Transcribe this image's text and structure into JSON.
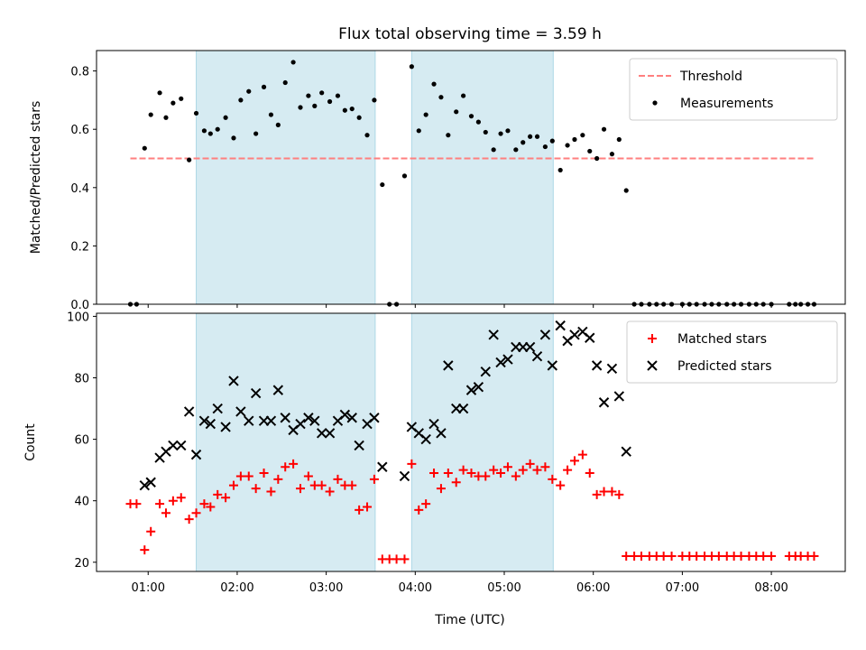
{
  "figure": {
    "title": "Flux total observing time = 3.59 h",
    "xlabel": "Time (UTC)"
  },
  "chart_data": [
    {
      "type": "scatter",
      "panel": "top",
      "ylabel": "Matched/Predicted stars",
      "ylim": [
        0,
        0.87
      ],
      "xlim": [
        0.42,
        8.83
      ],
      "x_unit": "hours UTC",
      "yticks": [
        "0.0",
        "0.2",
        "0.4",
        "0.6",
        "0.8"
      ],
      "ytick_values": [
        0,
        0.2,
        0.4,
        0.6,
        0.8
      ],
      "xticks": [
        "01:00",
        "02:00",
        "03:00",
        "04:00",
        "05:00",
        "06:00",
        "07:00",
        "08:00"
      ],
      "xtick_values": [
        1,
        2,
        3,
        4,
        5,
        6,
        7,
        8
      ],
      "shaded_intervals": [
        [
          1.54,
          3.55
        ],
        [
          3.96,
          5.55
        ]
      ],
      "legend": {
        "position": "top-right",
        "entries": [
          "Threshold",
          "Measurements"
        ]
      },
      "threshold": {
        "name": "Threshold",
        "y": 0.5,
        "x_range": [
          0.8,
          8.48
        ],
        "color": "#ff7f7f",
        "style": "dashed"
      },
      "series": [
        {
          "name": "Measurements",
          "color": "#000000",
          "marker": "dot",
          "x": [
            0.8,
            0.87,
            0.96,
            1.03,
            1.13,
            1.2,
            1.28,
            1.37,
            1.46,
            1.54,
            1.63,
            1.7,
            1.78,
            1.87,
            1.96,
            2.04,
            2.13,
            2.21,
            2.3,
            2.38,
            2.46,
            2.54,
            2.63,
            2.71,
            2.8,
            2.87,
            2.95,
            3.04,
            3.13,
            3.21,
            3.29,
            3.37,
            3.46,
            3.54,
            3.63,
            3.71,
            3.79,
            3.88,
            3.96,
            4.04,
            4.12,
            4.21,
            4.29,
            4.37,
            4.46,
            4.54,
            4.63,
            4.71,
            4.79,
            4.88,
            4.96,
            5.04,
            5.13,
            5.21,
            5.29,
            5.37,
            5.46,
            5.54,
            5.63,
            5.71,
            5.79,
            5.88,
            5.96,
            6.04,
            6.12,
            6.21,
            6.29,
            6.37,
            6.46,
            6.54,
            6.63,
            6.71,
            6.79,
            6.88,
            7.0,
            7.08,
            7.16,
            7.25,
            7.33,
            7.41,
            7.5,
            7.58,
            7.66,
            7.75,
            7.83,
            7.91,
            8.0,
            8.2,
            8.27,
            8.33,
            8.41,
            8.48
          ],
          "y": [
            0.0,
            0.0,
            0.535,
            0.65,
            0.725,
            0.64,
            0.69,
            0.705,
            0.495,
            0.655,
            0.595,
            0.585,
            0.6,
            0.64,
            0.57,
            0.7,
            0.73,
            0.585,
            0.745,
            0.65,
            0.615,
            0.76,
            0.83,
            0.675,
            0.715,
            0.68,
            0.725,
            0.695,
            0.715,
            0.665,
            0.67,
            0.64,
            0.58,
            0.7,
            0.41,
            0.0,
            0.0,
            0.44,
            0.815,
            0.595,
            0.65,
            0.755,
            0.71,
            0.58,
            0.66,
            0.715,
            0.645,
            0.625,
            0.59,
            0.53,
            0.585,
            0.595,
            0.53,
            0.555,
            0.575,
            0.575,
            0.54,
            0.56,
            0.46,
            0.545,
            0.565,
            0.58,
            0.525,
            0.5,
            0.6,
            0.515,
            0.565,
            0.39,
            0.0,
            0.0,
            0.0,
            0.0,
            0.0,
            0.0,
            0.0,
            0.0,
            0.0,
            0.0,
            0.0,
            0.0,
            0.0,
            0.0,
            0.0,
            0.0,
            0.0,
            0.0,
            0.0,
            0.0,
            0.0,
            0.0,
            0.0,
            0.0
          ]
        }
      ]
    },
    {
      "type": "scatter",
      "panel": "bottom",
      "ylabel": "Count",
      "ylim": [
        17,
        101
      ],
      "xlim": [
        0.42,
        8.83
      ],
      "x_unit": "hours UTC",
      "yticks": [
        "20",
        "40",
        "60",
        "80",
        "100"
      ],
      "ytick_values": [
        20,
        40,
        60,
        80,
        100
      ],
      "xticks": [
        "01:00",
        "02:00",
        "03:00",
        "04:00",
        "05:00",
        "06:00",
        "07:00",
        "08:00"
      ],
      "xtick_values": [
        1,
        2,
        3,
        4,
        5,
        6,
        7,
        8
      ],
      "shaded_intervals": [
        [
          1.54,
          3.55
        ],
        [
          3.96,
          5.55
        ]
      ],
      "legend": {
        "position": "top-right",
        "entries": [
          "Matched stars",
          "Predicted stars"
        ]
      },
      "series": [
        {
          "name": "Matched stars",
          "color": "#ff0000",
          "marker": "plus",
          "x": [
            0.8,
            0.87,
            0.96,
            1.03,
            1.13,
            1.2,
            1.28,
            1.37,
            1.46,
            1.54,
            1.63,
            1.7,
            1.78,
            1.87,
            1.96,
            2.04,
            2.13,
            2.21,
            2.3,
            2.38,
            2.46,
            2.54,
            2.63,
            2.71,
            2.8,
            2.87,
            2.95,
            3.04,
            3.13,
            3.21,
            3.29,
            3.37,
            3.46,
            3.54,
            3.63,
            3.71,
            3.79,
            3.88,
            3.96,
            4.04,
            4.12,
            4.21,
            4.29,
            4.37,
            4.46,
            4.54,
            4.63,
            4.71,
            4.79,
            4.88,
            4.96,
            5.04,
            5.13,
            5.21,
            5.29,
            5.37,
            5.46,
            5.54,
            5.63,
            5.71,
            5.79,
            5.88,
            5.96,
            6.04,
            6.12,
            6.21,
            6.29,
            6.37,
            6.46,
            6.54,
            6.63,
            6.71,
            6.79,
            6.88,
            7.0,
            7.08,
            7.16,
            7.25,
            7.33,
            7.41,
            7.5,
            7.58,
            7.66,
            7.75,
            7.83,
            7.91,
            8.0,
            8.2,
            8.27,
            8.33,
            8.41,
            8.48
          ],
          "y": [
            39,
            39,
            24,
            30,
            39,
            36,
            40,
            41,
            34,
            36,
            39,
            38,
            42,
            41,
            45,
            48,
            48,
            44,
            49,
            43,
            47,
            51,
            52,
            44,
            48,
            45,
            45,
            43,
            47,
            45,
            45,
            37,
            38,
            47,
            21,
            21,
            21,
            21,
            52,
            37,
            39,
            49,
            44,
            49,
            46,
            50,
            49,
            48,
            48,
            50,
            49,
            51,
            48,
            50,
            52,
            50,
            51,
            47,
            45,
            50,
            53,
            55,
            49,
            42,
            43,
            43,
            42,
            22,
            22,
            22,
            22,
            22,
            22,
            22,
            22,
            22,
            22,
            22,
            22,
            22,
            22,
            22,
            22,
            22,
            22,
            22,
            22,
            22,
            22,
            22,
            22,
            22
          ]
        },
        {
          "name": "Predicted stars",
          "color": "#000000",
          "marker": "x",
          "x": [
            0.96,
            1.03,
            1.13,
            1.2,
            1.28,
            1.37,
            1.46,
            1.54,
            1.63,
            1.7,
            1.78,
            1.87,
            1.96,
            2.04,
            2.13,
            2.21,
            2.3,
            2.38,
            2.46,
            2.54,
            2.63,
            2.71,
            2.8,
            2.87,
            2.95,
            3.04,
            3.13,
            3.21,
            3.29,
            3.37,
            3.46,
            3.54,
            3.63,
            3.88,
            3.96,
            4.04,
            4.12,
            4.21,
            4.29,
            4.37,
            4.46,
            4.54,
            4.63,
            4.71,
            4.79,
            4.88,
            4.96,
            5.04,
            5.13,
            5.21,
            5.29,
            5.37,
            5.46,
            5.54,
            5.63,
            5.71,
            5.79,
            5.88,
            5.96,
            6.04,
            6.12,
            6.21,
            6.29,
            6.37
          ],
          "y": [
            45,
            46,
            54,
            56,
            58,
            58,
            69,
            55,
            66,
            65,
            70,
            64,
            79,
            69,
            66,
            75,
            66,
            66,
            76,
            67,
            63,
            65,
            67,
            66,
            62,
            62,
            66,
            68,
            67,
            58,
            65,
            67,
            51,
            48,
            64,
            62,
            60,
            65,
            62,
            84,
            70,
            70,
            76,
            77,
            82,
            94,
            85,
            86,
            90,
            90,
            90,
            87,
            94,
            84,
            97,
            92,
            94,
            95,
            93,
            84,
            72,
            83,
            74,
            56
          ]
        }
      ]
    }
  ]
}
